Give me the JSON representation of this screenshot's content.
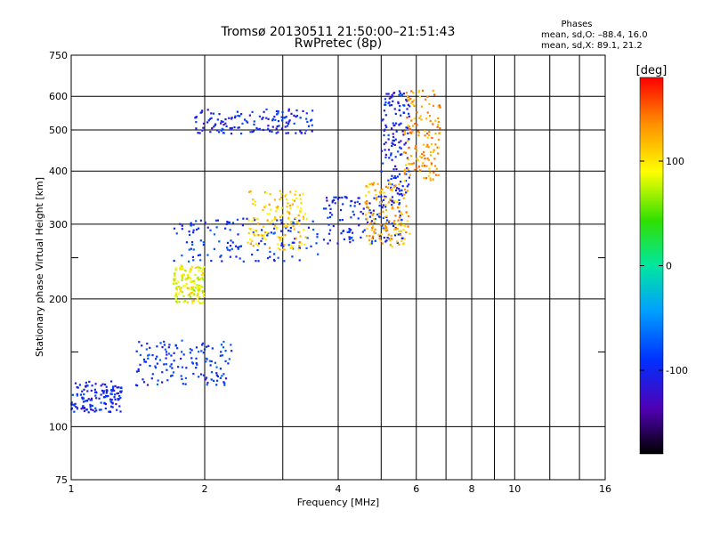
{
  "chart_data": {
    "type": "scatter",
    "title": "Tromsø 20130511 21:50:00–21:51:43",
    "subtitle": "RwPretec (8p)",
    "xlabel": "Frequency [MHz]",
    "ylabel": "Stationary phase Virtual Height [km]",
    "xscale": "log",
    "yscale": "log",
    "xlim": [
      1,
      16
    ],
    "ylim": [
      75,
      750
    ],
    "x_ticks": [
      1,
      2,
      4,
      6,
      8,
      10,
      16
    ],
    "x_minor_ticks": [
      3,
      5,
      7,
      9,
      12,
      14
    ],
    "y_ticks": [
      75,
      100,
      200,
      300,
      400,
      500,
      600,
      750
    ],
    "y_minor_ticks": [
      150,
      250
    ],
    "grid": true,
    "phase_info": {
      "heading": "Phases",
      "line_o": "mean, sd,O: –88.4, 16.0",
      "line_x": "mean, sd,X:  89.1, 21.2"
    },
    "colorbar": {
      "label": "[deg]",
      "range": [
        -180,
        180
      ],
      "ticks": [
        100,
        0,
        -100
      ]
    },
    "traces": [
      {
        "name": "",
        "phase": -100,
        "x_range": [
          1.0,
          1.3
        ],
        "y_range": [
          108,
          128
        ]
      },
      {
        "name": "",
        "phase": -90,
        "x_range": [
          1.4,
          2.3
        ],
        "y_range": [
          125,
          160
        ]
      },
      {
        "name": "",
        "phase": 90,
        "x_range": [
          1.7,
          2.0
        ],
        "y_range": [
          195,
          240
        ]
      },
      {
        "name": "",
        "phase": -90,
        "x_range": [
          1.7,
          3.6
        ],
        "y_range": [
          245,
          310
        ]
      },
      {
        "name": "",
        "phase": 110,
        "x_range": [
          2.5,
          3.4
        ],
        "y_range": [
          260,
          360
        ]
      },
      {
        "name": "",
        "phase": -100,
        "x_range": [
          3.7,
          5.6
        ],
        "y_range": [
          270,
          350
        ]
      },
      {
        "name": "",
        "phase": -100,
        "x_range": [
          5.0,
          5.8
        ],
        "y_range": [
          350,
          620
        ]
      },
      {
        "name": "",
        "phase": 120,
        "x_range": [
          4.6,
          5.8
        ],
        "y_range": [
          265,
          380
        ]
      },
      {
        "name": "",
        "phase": 130,
        "x_range": [
          5.6,
          6.8
        ],
        "y_range": [
          380,
          620
        ]
      },
      {
        "name": "",
        "phase": -100,
        "x_range": [
          1.9,
          3.5
        ],
        "y_range": [
          490,
          560
        ]
      }
    ]
  }
}
